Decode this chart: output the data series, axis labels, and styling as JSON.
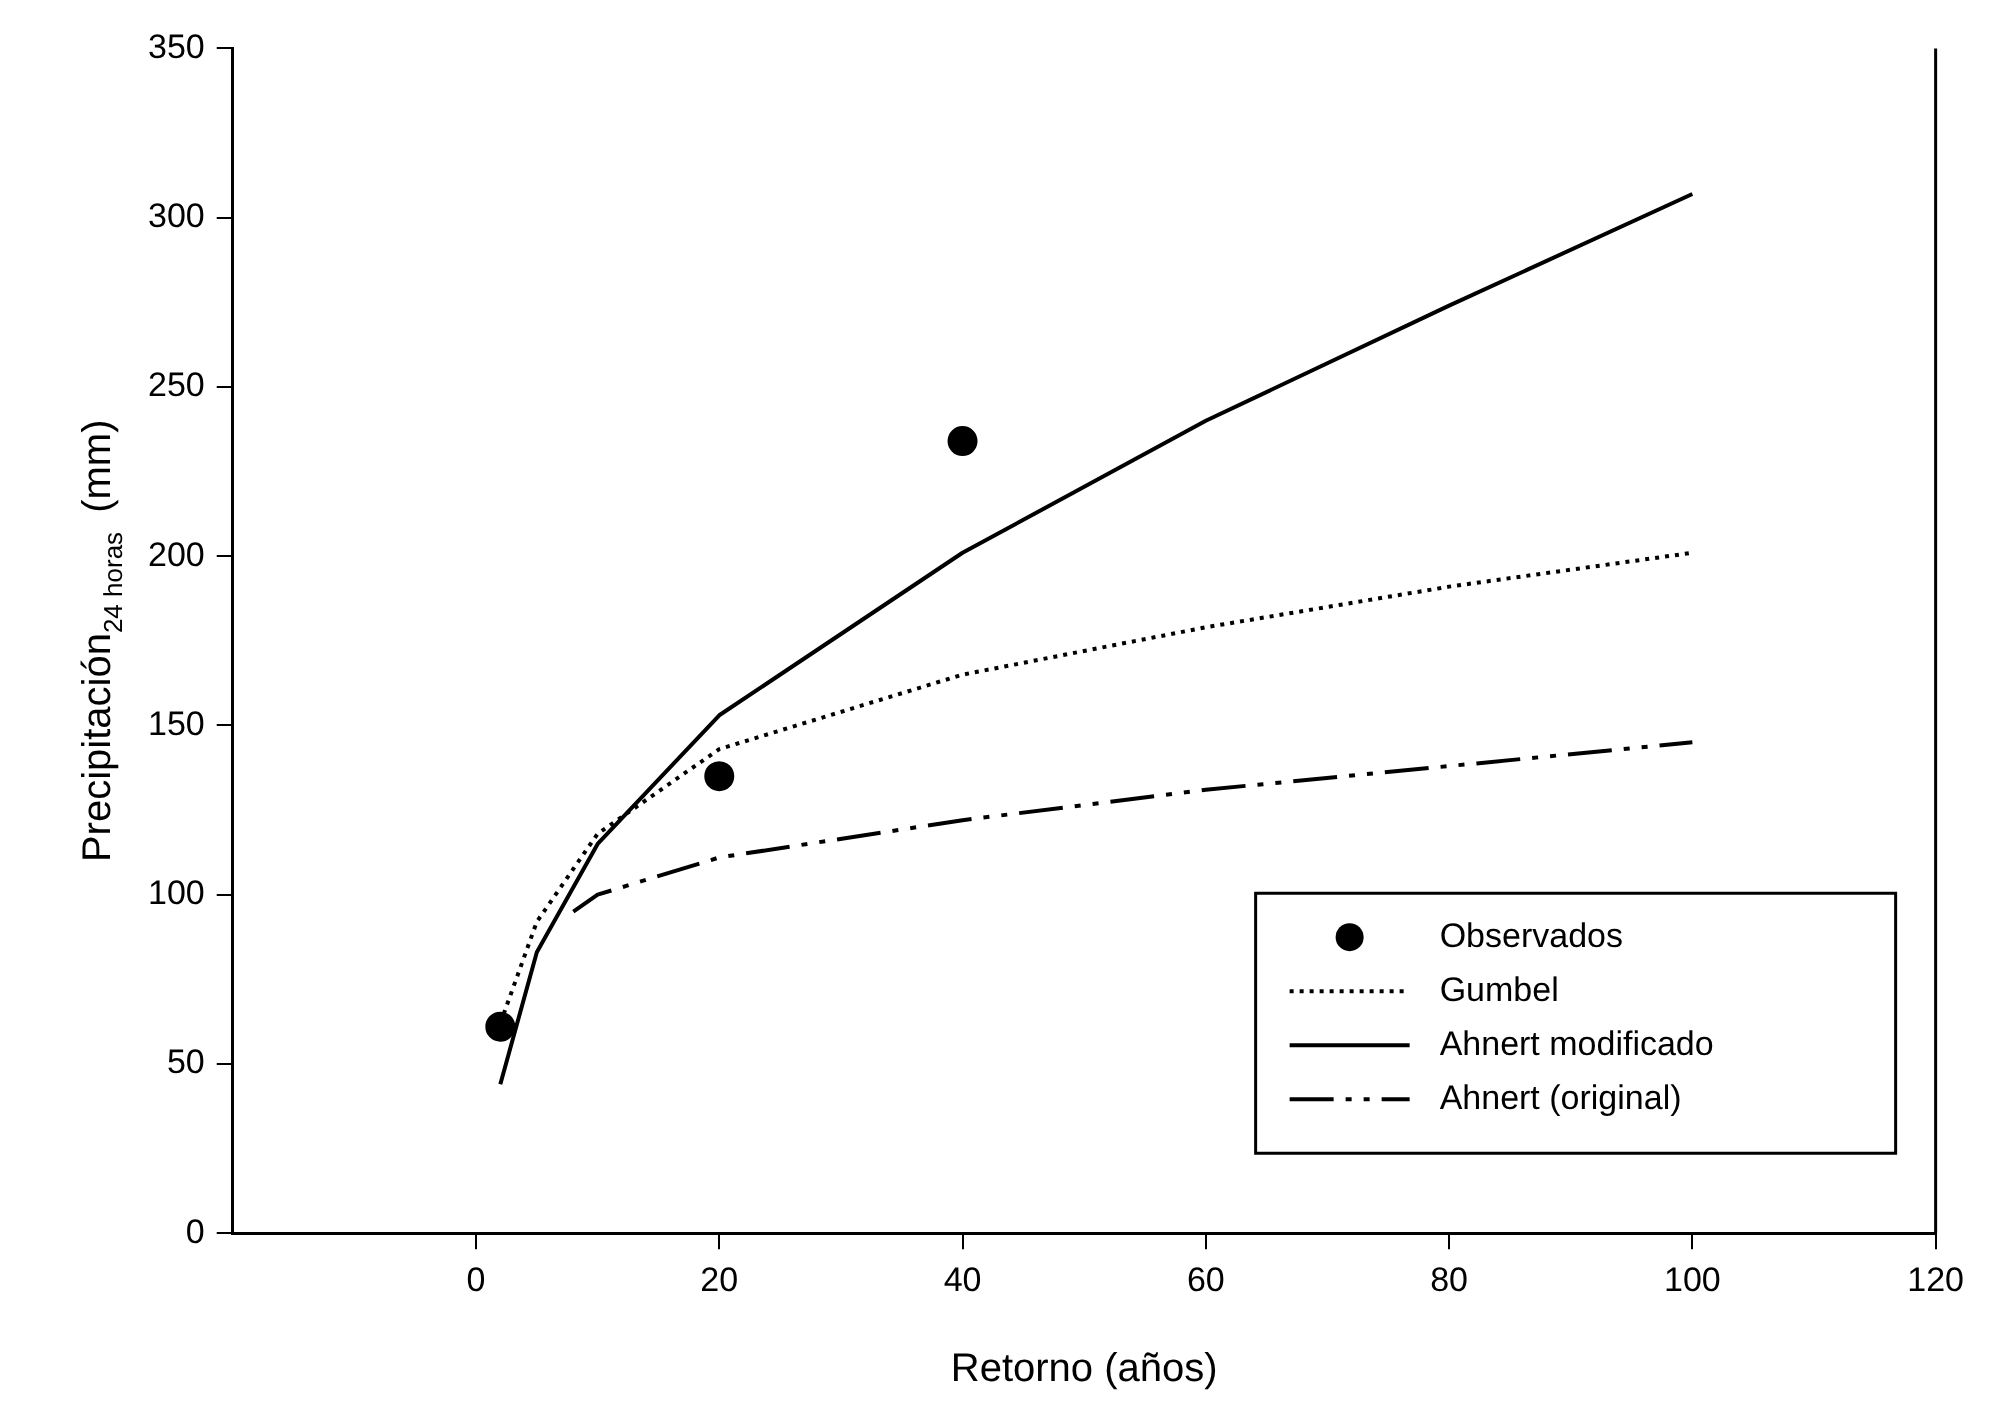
{
  "chart_data": {
    "type": "line",
    "xlabel": "Retorno (años)",
    "ylabel": "Precipitación$_{24 horas}$ (mm)",
    "xlim": [
      -20,
      120
    ],
    "xticks": [
      0,
      20,
      40,
      60,
      80,
      100,
      120
    ],
    "ylim": [
      0,
      350
    ],
    "yticks": [
      0,
      50,
      100,
      150,
      200,
      250,
      300,
      350
    ],
    "grid": false,
    "legend": "bottom right",
    "series": [
      {
        "name": "Observados",
        "type": "scatter",
        "marker": "circle",
        "color": "#000000",
        "x": [
          2,
          20,
          40
        ],
        "values": [
          61,
          135,
          234
        ]
      },
      {
        "name": "Gumbel",
        "line_style": "dotted",
        "color": "#000000",
        "x": [
          2,
          5,
          10,
          20,
          40,
          60,
          80,
          100
        ],
        "values": [
          62,
          92,
          118,
          143,
          165,
          179,
          191,
          201
        ]
      },
      {
        "name": "Ahnert modificado",
        "line_style": "solid",
        "color": "#000000",
        "x": [
          2,
          5,
          10,
          20,
          40,
          60,
          80,
          100
        ],
        "values": [
          44,
          83,
          115,
          153,
          201,
          240,
          274,
          307
        ]
      },
      {
        "name": "Ahnert (original)",
        "line_style": "dashdot",
        "color": "#000000",
        "x": [
          8,
          10,
          20,
          40,
          60,
          80,
          100
        ],
        "values": [
          95,
          100,
          111,
          122,
          131,
          138,
          145
        ]
      }
    ]
  }
}
